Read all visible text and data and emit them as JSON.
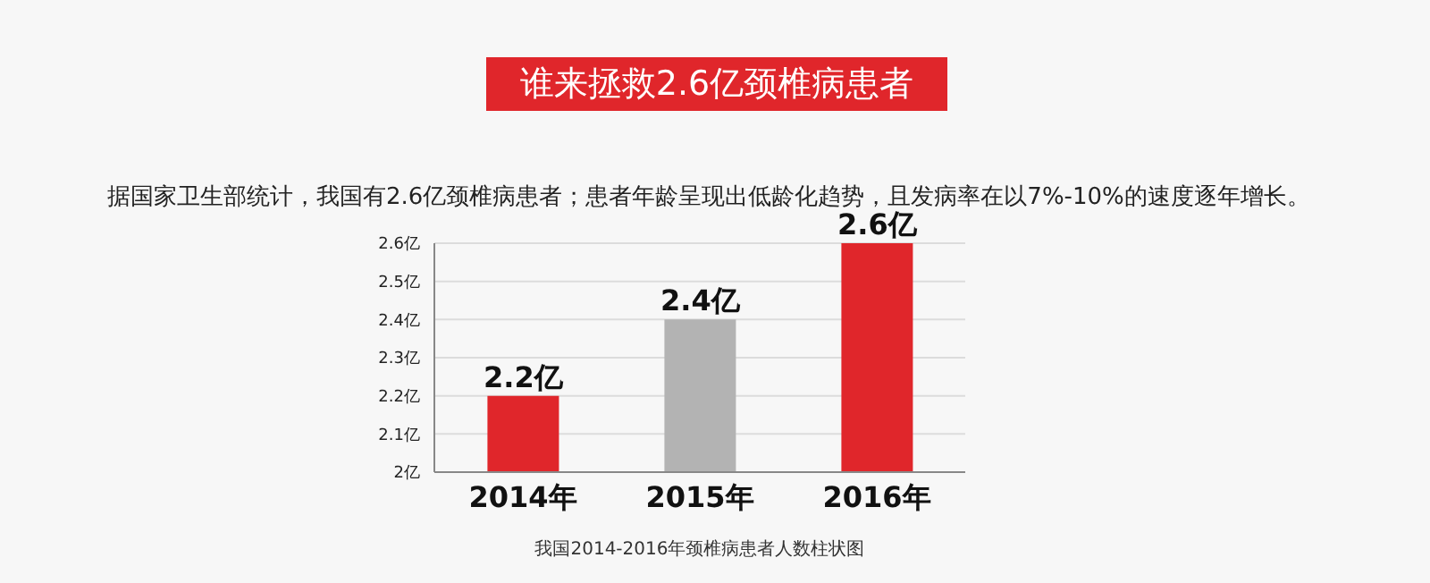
{
  "chart_data": {
    "type": "bar",
    "title": "谁来拯救2.6亿颈椎病患者",
    "subtitle": "据国家卫生部统计，我国有2.6亿颈椎病患者；患者年龄呈现出低龄化趋势，且发病率在以7%-10%的速度逐年增长。",
    "xlabel": "我国2014-2016年颈椎病患者人数柱状图",
    "categories": [
      "2014年",
      "2015年",
      "2016年"
    ],
    "values": [
      2.2,
      2.4,
      2.6
    ],
    "colors": [
      "#e0262b",
      "#b3b3b3",
      "#e0262b"
    ],
    "value_labels": [
      "2.2亿",
      "2.4亿",
      "2.6亿"
    ],
    "ylim": [
      2,
      2.6
    ],
    "yticks": [
      {
        "value": 2,
        "label": "2亿"
      },
      {
        "value": 2.1,
        "label": "2.1亿"
      },
      {
        "value": 2.2,
        "label": "2.2亿"
      },
      {
        "value": 2.3,
        "label": "2.3亿"
      },
      {
        "value": 2.4,
        "label": "2.4亿"
      },
      {
        "value": 2.5,
        "label": "2.5亿"
      },
      {
        "value": 2.6,
        "label": "2.6亿"
      }
    ],
    "grid": "y"
  }
}
